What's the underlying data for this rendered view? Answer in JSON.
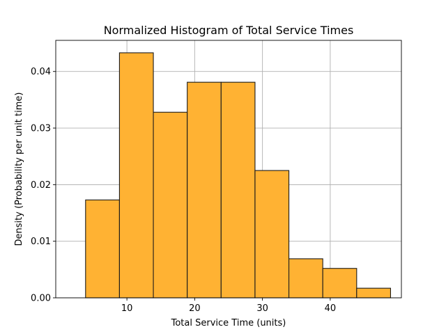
{
  "chart_data": {
    "type": "bar",
    "title": "Normalized Histogram of Total Service Times",
    "xlabel": "Total Service Time (units)",
    "ylabel": "Density (Probability per unit time)",
    "bin_edges": [
      3.9,
      8.9,
      13.9,
      18.9,
      23.9,
      28.9,
      33.9,
      38.9,
      43.9,
      48.9
    ],
    "values": [
      0.0173,
      0.0433,
      0.0328,
      0.0381,
      0.0381,
      0.0225,
      0.0069,
      0.0052,
      0.0017
    ],
    "xlim": [
      -0.5,
      50.5
    ],
    "ylim": [
      0,
      0.0455
    ],
    "x_ticks": [
      10,
      20,
      30,
      40
    ],
    "x_tick_labels": [
      "10",
      "20",
      "30",
      "40"
    ],
    "y_ticks": [
      0,
      0.01,
      0.02,
      0.03,
      0.04
    ],
    "y_tick_labels": [
      "0.00",
      "0.01",
      "0.02",
      "0.03",
      "0.04"
    ],
    "grid": true,
    "bar_color": "#ffb233",
    "edge_color": "#1a1a1a"
  }
}
